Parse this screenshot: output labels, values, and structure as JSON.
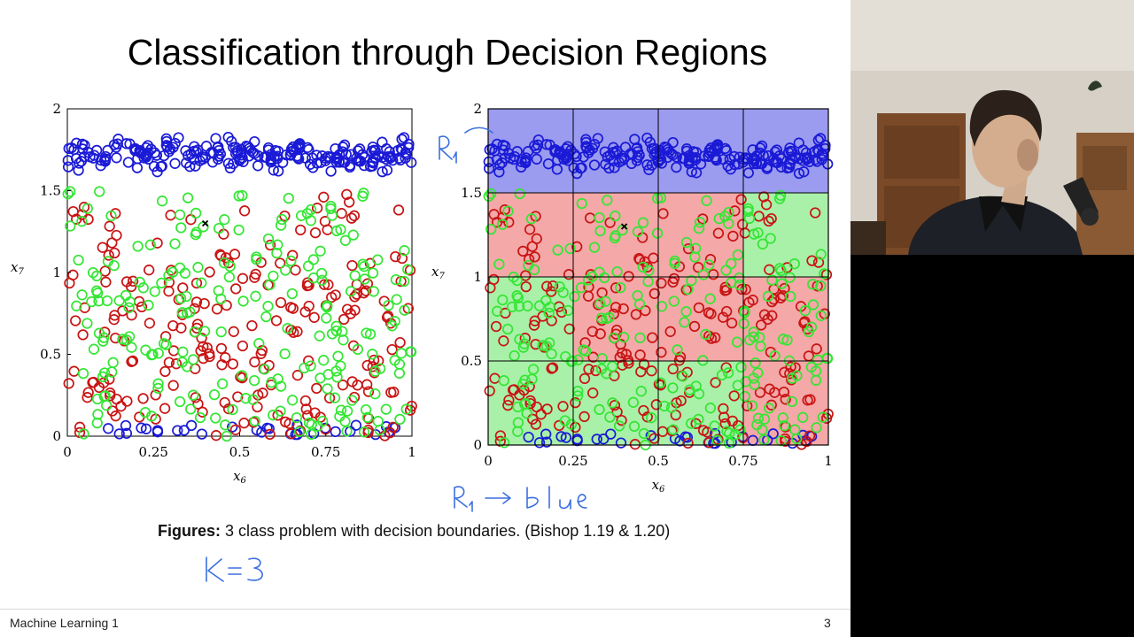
{
  "slide": {
    "title": "Classification through Decision Regions",
    "caption_bold": "Figures:",
    "caption_text": " 3 class problem with decision boundaries. (Bishop 1.19 & 1.20)",
    "footer_left": "Machine Learning 1",
    "page_number": "3"
  },
  "colors": {
    "blue": "#1a1ad6",
    "red": "#c81414",
    "green": "#33e633",
    "region_blue": "#9b9bf0",
    "region_red": "#f4a8a8",
    "region_green": "#a9f0a9"
  },
  "chart_data": [
    {
      "type": "scatter",
      "xlabel": "x6",
      "ylabel": "x7",
      "xlim": [
        0,
        1
      ],
      "ylim": [
        0,
        2
      ],
      "xticks": [
        "0",
        "0.25",
        "0.5",
        "0.75",
        "1"
      ],
      "yticks": [
        "0",
        "0.5",
        "1",
        "1.5",
        "2"
      ],
      "marker": "open-circle",
      "series": [
        {
          "color": "blue",
          "cluster": {
            "x_range": [
              0.0,
              1.0
            ],
            "y_center": 1.72,
            "y_spread": 0.09
          },
          "extra_low_band": {
            "x_range": [
              0.1,
              1.0
            ],
            "y_range": [
              0.0,
              0.06
            ]
          }
        },
        {
          "color": "red",
          "cluster": {
            "x_range": [
              0.0,
              1.0
            ],
            "y_range": [
              0.0,
              1.5
            ]
          }
        },
        {
          "color": "green",
          "cluster": {
            "x_range": [
              0.0,
              1.0
            ],
            "y_range": [
              0.0,
              1.5
            ]
          }
        }
      ],
      "query_point": {
        "x": 0.4,
        "y": 1.3
      }
    },
    {
      "type": "scatter",
      "xlabel": "x6",
      "ylabel": "x7",
      "xlim": [
        0,
        1
      ],
      "ylim": [
        0,
        2
      ],
      "xticks": [
        "0",
        "0.25",
        "0.5",
        "0.75",
        "1"
      ],
      "yticks": [
        "0",
        "0.5",
        "1",
        "1.5",
        "2"
      ],
      "grid": true,
      "regions": [
        [
          "blue",
          "blue",
          "blue",
          "blue"
        ],
        [
          "red",
          "red",
          "red",
          "green"
        ],
        [
          "green",
          "red",
          "red",
          "red"
        ],
        [
          "green",
          "green",
          "green",
          "red"
        ]
      ],
      "query_point": {
        "x": 0.4,
        "y": 1.3
      }
    }
  ],
  "annotations": {
    "r1_label": "R₁",
    "r1_blue": "R₁ → blue",
    "k3": "K=3"
  }
}
